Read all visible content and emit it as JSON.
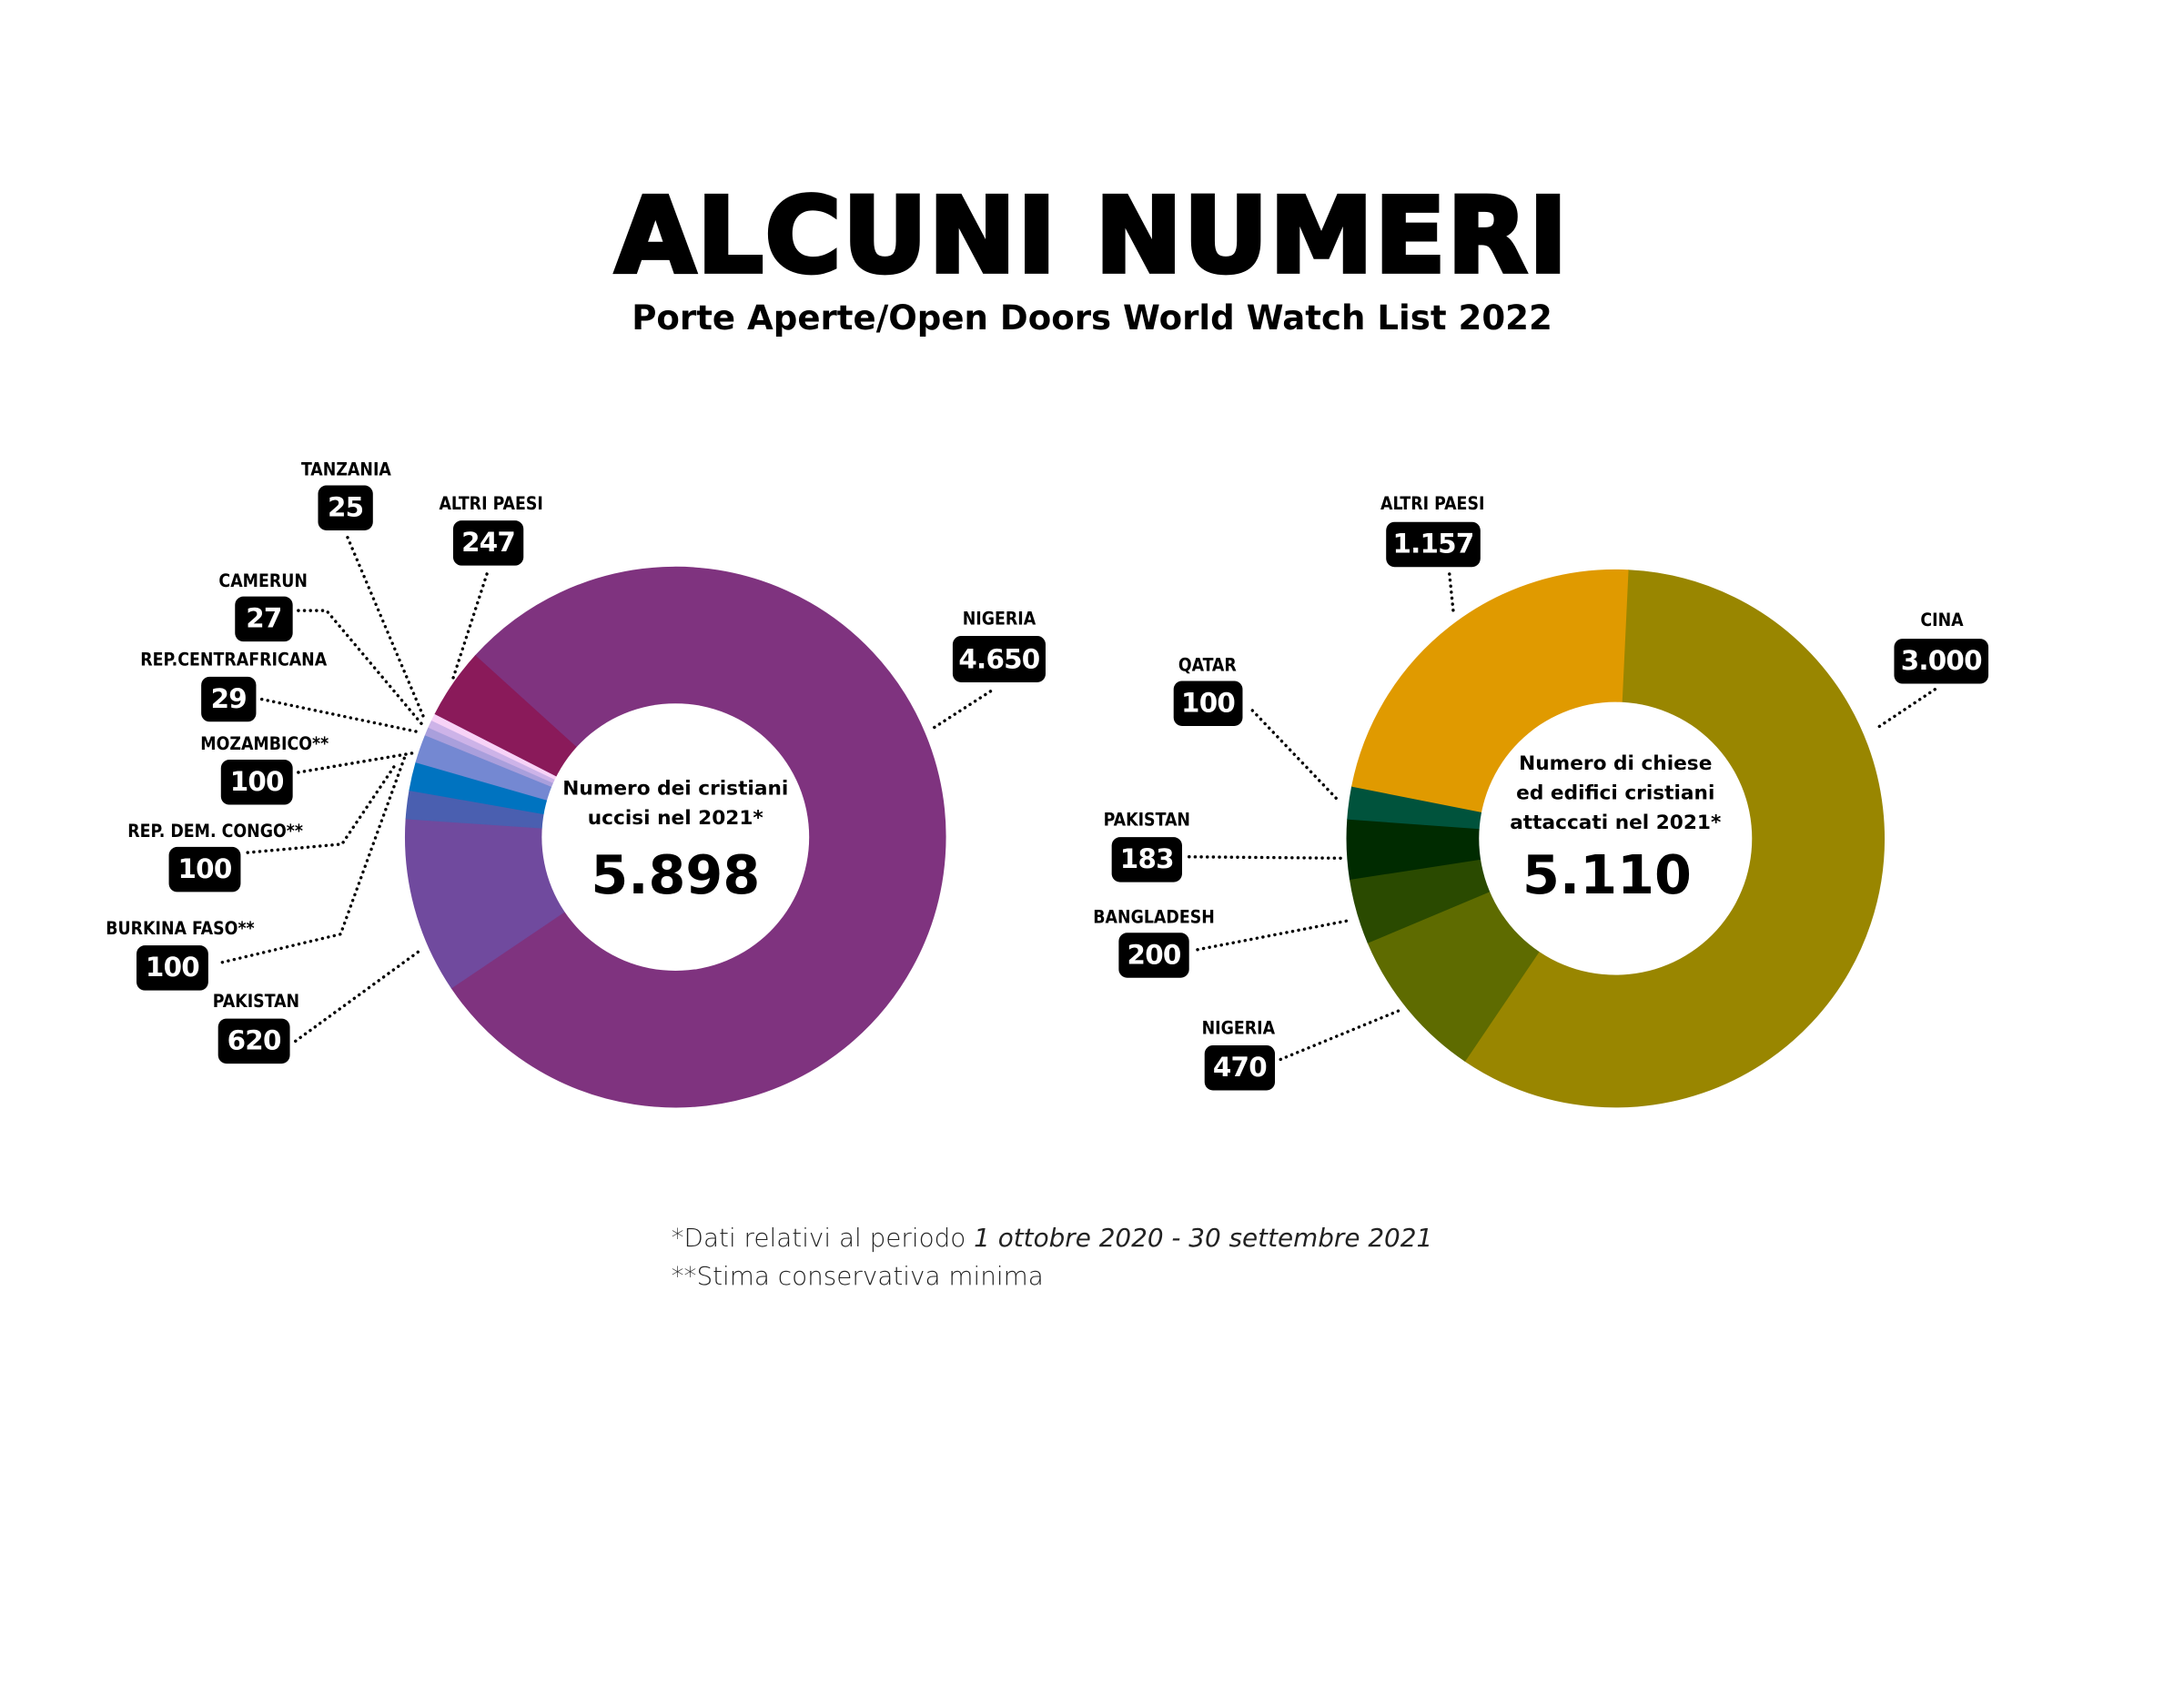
{
  "header": {
    "title": "ALCUNI NUMERI",
    "subtitle": "Porte Aperte/Open Doors World Watch List 2022"
  },
  "chart_data": [
    {
      "type": "pie",
      "donut": true,
      "center_text": "Numero dei cristiani uccisi nel 2021*",
      "center_text_lines": [
        "Numero dei cristiani",
        "uccisi nel 2021*"
      ],
      "total_label": "5.898",
      "categories": [
        "NIGERIA",
        "PAKISTAN",
        "BURKINA FASO**",
        "REP. DEM. CONGO**",
        "MOZAMBICO**",
        "REP.CENTRAFRICANA",
        "CAMERUN",
        "TANZANIA",
        "ALTRI PAESI"
      ],
      "values": [
        4650,
        620,
        100,
        100,
        100,
        29,
        27,
        25,
        247
      ],
      "value_labels": [
        "4.650",
        "620",
        "100",
        "100",
        "100",
        "29",
        "27",
        "25",
        "247"
      ],
      "colors": [
        "#7f337f",
        "#704a9e",
        "#4a5fb0",
        "#0073c0",
        "#7488d2",
        "#a99fdc",
        "#cdb3e8",
        "#f7d3f7",
        "#8a1a5a"
      ]
    },
    {
      "type": "pie",
      "donut": true,
      "center_text": "Numero di chiese ed edifici cristiani attaccati nel 2021*",
      "center_text_lines": [
        "Numero di chiese",
        "ed edifici cristiani",
        "attaccati nel 2021*"
      ],
      "total_label": "5.110",
      "categories": [
        "CINA",
        "NIGERIA",
        "BANGLADESH",
        "PAKISTAN",
        "QATAR",
        "ALTRI PAESI"
      ],
      "values": [
        3000,
        470,
        200,
        183,
        100,
        1157
      ],
      "value_labels": [
        "3.000",
        "470",
        "200",
        "183",
        "100",
        "1.157"
      ],
      "colors": [
        "#998600",
        "#5e6b00",
        "#2a4a00",
        "#002b00",
        "#00533c",
        "#e09a00"
      ]
    }
  ],
  "footnotes": {
    "line1_prefix": "*Dati relativi al periodo ",
    "line1_italic": "1 ottobre 2020 - 30 settembre 2021",
    "line2": "**Stima conservativa minima"
  }
}
